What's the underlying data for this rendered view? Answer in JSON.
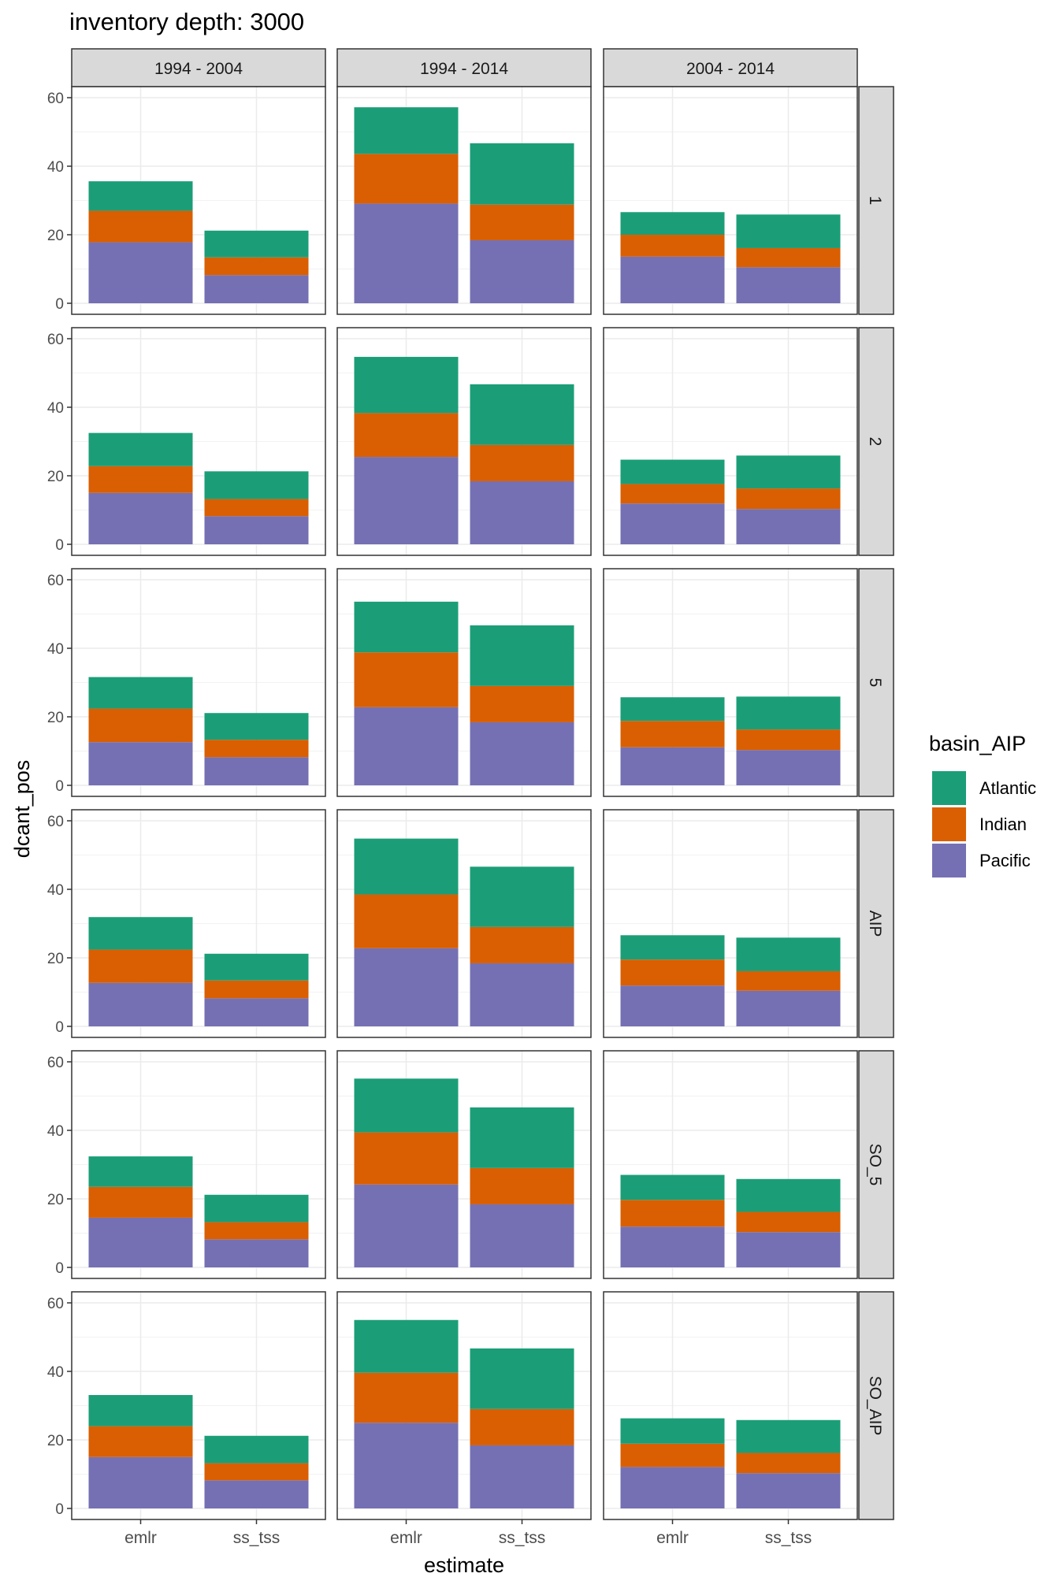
{
  "chart_data": {
    "type": "bar",
    "stacked": true,
    "title": "inventory depth: 3000",
    "xlabel": "estimate",
    "ylabel": "dcant_pos",
    "ylim": [
      0,
      60
    ],
    "y_ticks": [
      0,
      20,
      40,
      60
    ],
    "grid": true,
    "legend": {
      "title": "basin_AIP",
      "position": "right",
      "entries": [
        {
          "label": "Atlantic",
          "color": "#1B9E77"
        },
        {
          "label": "Indian",
          "color": "#D95F02"
        },
        {
          "label": "Pacific",
          "color": "#7570B3"
        }
      ]
    },
    "stack_order": [
      "Pacific",
      "Indian",
      "Atlantic"
    ],
    "categories": [
      "emlr",
      "ss_tss"
    ],
    "column_facets": [
      "1994 - 2004",
      "1994 - 2014",
      "2004 - 2014"
    ],
    "row_facets": [
      "1",
      "2",
      "5",
      "AIP",
      "SO_5",
      "SO_AIP"
    ],
    "panels": [
      [
        {
          "Pacific": [
            17.8,
            8.2
          ],
          "Indian": [
            9.2,
            5.2
          ],
          "Atlantic": [
            8.6,
            7.8
          ]
        },
        {
          "Pacific": [
            29.1,
            18.4
          ],
          "Indian": [
            14.5,
            10.4
          ],
          "Atlantic": [
            13.6,
            17.9
          ]
        },
        {
          "Pacific": [
            13.6,
            10.5
          ],
          "Indian": [
            6.4,
            5.6
          ],
          "Atlantic": [
            6.6,
            9.8
          ]
        }
      ],
      [
        {
          "Pacific": [
            15.0,
            8.2
          ],
          "Indian": [
            7.8,
            5.0
          ],
          "Atlantic": [
            9.7,
            8.1
          ]
        },
        {
          "Pacific": [
            25.5,
            18.4
          ],
          "Indian": [
            12.8,
            10.6
          ],
          "Atlantic": [
            16.4,
            17.7
          ]
        },
        {
          "Pacific": [
            11.9,
            10.3
          ],
          "Indian": [
            5.7,
            6.0
          ],
          "Atlantic": [
            7.1,
            9.6
          ]
        }
      ],
      [
        {
          "Pacific": [
            12.6,
            8.2
          ],
          "Indian": [
            9.8,
            5.1
          ],
          "Atlantic": [
            9.2,
            7.8
          ]
        },
        {
          "Pacific": [
            22.8,
            18.4
          ],
          "Indian": [
            16.0,
            10.6
          ],
          "Atlantic": [
            14.8,
            17.7
          ]
        },
        {
          "Pacific": [
            11.1,
            10.3
          ],
          "Indian": [
            7.7,
            6.0
          ],
          "Atlantic": [
            6.9,
            9.6
          ]
        }
      ],
      [
        {
          "Pacific": [
            12.7,
            8.2
          ],
          "Indian": [
            9.7,
            5.2
          ],
          "Atlantic": [
            9.5,
            7.8
          ]
        },
        {
          "Pacific": [
            22.8,
            18.4
          ],
          "Indian": [
            15.7,
            10.6
          ],
          "Atlantic": [
            16.3,
            17.6
          ]
        },
        {
          "Pacific": [
            11.9,
            10.4
          ],
          "Indian": [
            7.6,
            5.7
          ],
          "Atlantic": [
            7.1,
            9.8
          ]
        }
      ],
      [
        {
          "Pacific": [
            14.5,
            8.2
          ],
          "Indian": [
            9.0,
            5.0
          ],
          "Atlantic": [
            8.9,
            8.0
          ]
        },
        {
          "Pacific": [
            24.2,
            18.4
          ],
          "Indian": [
            15.2,
            10.6
          ],
          "Atlantic": [
            15.7,
            17.7
          ]
        },
        {
          "Pacific": [
            11.9,
            10.3
          ],
          "Indian": [
            7.8,
            5.9
          ],
          "Atlantic": [
            7.3,
            9.6
          ]
        }
      ],
      [
        {
          "Pacific": [
            15.0,
            8.2
          ],
          "Indian": [
            9.0,
            5.0
          ],
          "Atlantic": [
            9.1,
            8.0
          ]
        },
        {
          "Pacific": [
            25.0,
            18.4
          ],
          "Indian": [
            14.6,
            10.6
          ],
          "Atlantic": [
            15.4,
            17.7
          ]
        },
        {
          "Pacific": [
            12.1,
            10.3
          ],
          "Indian": [
            6.8,
            5.9
          ],
          "Atlantic": [
            7.4,
            9.6
          ]
        }
      ]
    ]
  }
}
